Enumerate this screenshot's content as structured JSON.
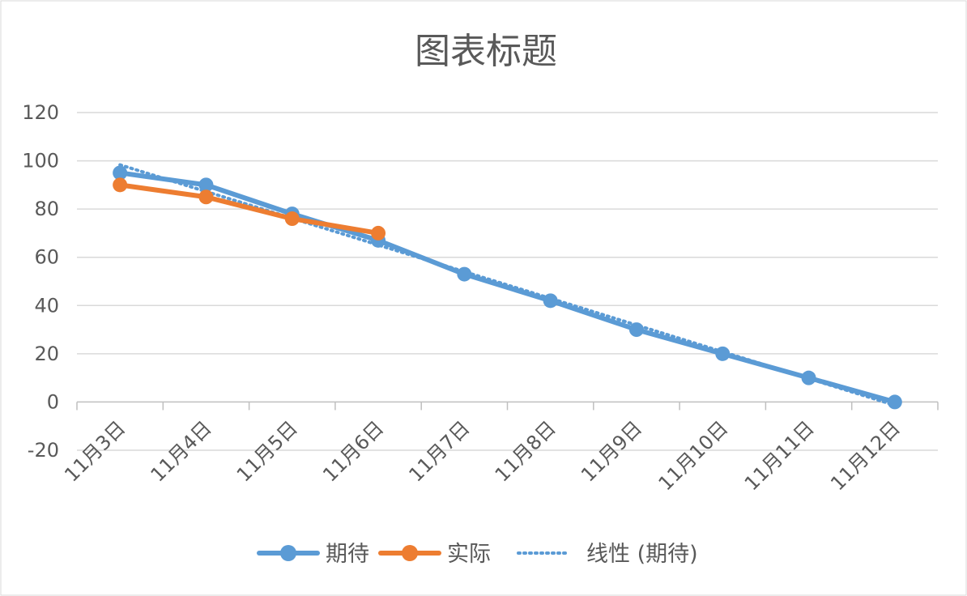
{
  "chart_data": {
    "type": "line",
    "title": "图表标题",
    "xlabel": "",
    "ylabel": "",
    "categories": [
      "11月3日",
      "11月4日",
      "11月5日",
      "11月6日",
      "11月7日",
      "11月8日",
      "11月9日",
      "11月10日",
      "11月11日",
      "11月12日"
    ],
    "ylim": [
      -20,
      120
    ],
    "yticks": [
      -20,
      0,
      20,
      40,
      60,
      80,
      100,
      120
    ],
    "grid": true,
    "legend_position": "bottom",
    "series": [
      {
        "name": "期待",
        "color": "#5B9BD5",
        "style": "solid-marker",
        "values": [
          95,
          90,
          78,
          67,
          53,
          42,
          30,
          20,
          10,
          0
        ]
      },
      {
        "name": "实际",
        "color": "#ED7D31",
        "style": "solid-marker",
        "values": [
          90,
          85,
          76,
          70,
          null,
          null,
          null,
          null,
          null,
          null
        ]
      }
    ],
    "trendline": {
      "name": "线性 (期待)",
      "color": "#5B9BD5",
      "style": "dotted",
      "of_series": "期待",
      "type": "linear"
    }
  }
}
